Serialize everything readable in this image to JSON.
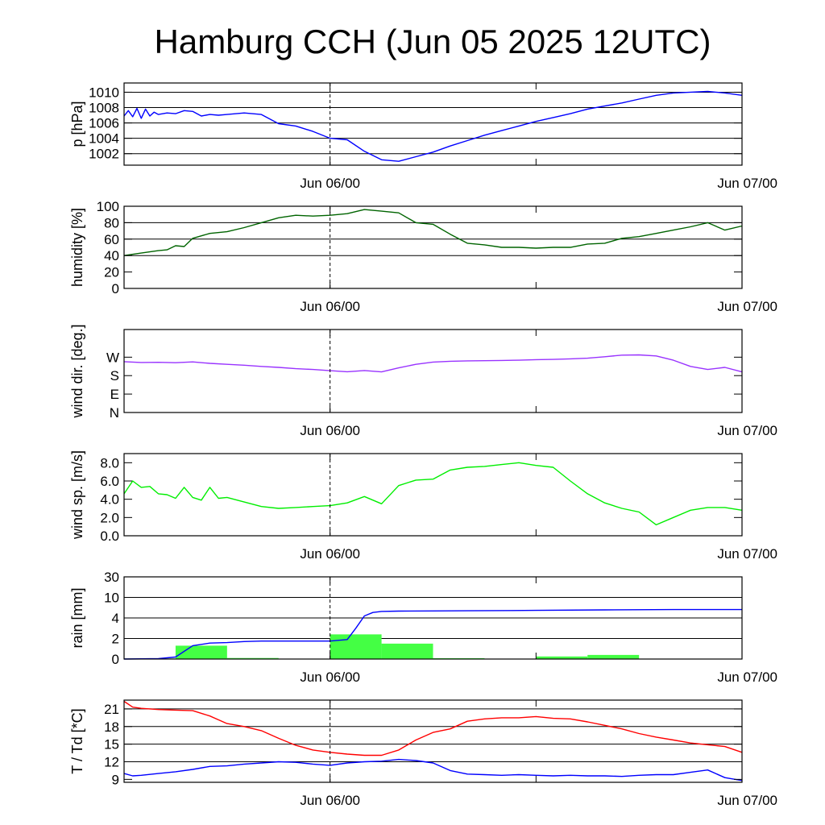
{
  "chart_data": {
    "type": "line",
    "title": "Hamburg CCH (Jun 05 2025 12UTC)",
    "x_ticks": [
      "Jun 06/00",
      "Jun 07/00"
    ],
    "x_range": [
      "Jun 05 12:00",
      "Jun 07 00:00"
    ],
    "marker_line": "Jun 06/00",
    "panels": [
      {
        "id": "pressure",
        "ylabel": "p [hPa]",
        "ylim": [
          1000.5,
          1011.2
        ],
        "yticks": [
          1002,
          1004,
          1006,
          1008,
          1010
        ],
        "yticklabels": [
          "1002",
          "1004",
          "1006",
          "1008",
          "1010"
        ],
        "gridlines": [
          1002,
          1004,
          1006,
          1008,
          1010
        ],
        "series": [
          {
            "color": "#0000ff",
            "x": [
              0,
              0.25,
              0.5,
              0.75,
              1,
              1.25,
              1.5,
              1.75,
              2,
              2.5,
              3,
              3.5,
              4,
              4.5,
              5,
              5.5,
              6,
              7,
              8,
              9,
              10,
              11,
              12,
              13,
              14,
              15,
              16,
              17,
              18,
              19,
              20,
              21,
              22,
              23,
              24,
              25,
              26,
              27,
              28,
              29,
              30,
              31,
              32,
              33,
              34,
              35,
              36
            ],
            "values": [
              1006.9,
              1007.6,
              1006.8,
              1007.9,
              1006.6,
              1007.8,
              1006.9,
              1007.4,
              1007.1,
              1007.3,
              1007.2,
              1007.6,
              1007.5,
              1006.9,
              1007.1,
              1007.0,
              1007.1,
              1007.3,
              1007.1,
              1005.9,
              1005.6,
              1004.9,
              1004.0,
              1003.8,
              1002.3,
              1001.2,
              1001.0,
              1001.6,
              1002.2,
              1003.0,
              1003.7,
              1004.4,
              1005.0,
              1005.6,
              1006.2,
              1006.7,
              1007.2,
              1007.8,
              1008.2,
              1008.6,
              1009.1,
              1009.6,
              1009.9,
              1010.0,
              1010.1,
              1009.9,
              1009.6
            ]
          }
        ]
      },
      {
        "id": "humidity",
        "ylabel": "humidity [%]",
        "ylim": [
          0,
          100
        ],
        "yticks": [
          0,
          20,
          40,
          60,
          80,
          100
        ],
        "yticklabels": [
          "0",
          "20",
          "40",
          "60",
          "80",
          "100"
        ],
        "gridlines": [
          40,
          60,
          80
        ],
        "series": [
          {
            "color": "#006400",
            "x": [
              0,
              1,
              2,
              2.5,
              3,
              3.5,
              4,
              5,
              6,
              7,
              8,
              9,
              10,
              11,
              12,
              13,
              14,
              15,
              16,
              17,
              18,
              19,
              20,
              21,
              22,
              23,
              24,
              25,
              26,
              27,
              28,
              29,
              30,
              31,
              32,
              33,
              34,
              35,
              36
            ],
            "values": [
              40,
              43,
              46,
              47,
              52,
              51,
              61,
              67,
              69,
              74,
              80,
              86,
              89,
              88,
              89,
              91,
              96,
              94,
              92,
              80,
              78,
              66,
              55,
              53,
              50,
              50,
              49,
              50,
              50,
              54,
              55,
              61,
              63,
              67,
              71,
              75,
              80,
              71,
              76
            ]
          }
        ]
      },
      {
        "id": "wind_direction",
        "ylabel": "wind dir. [deg.]",
        "ylim": [
          0,
          405
        ],
        "yticks": [
          0,
          90,
          180,
          270
        ],
        "yticklabels": [
          "N",
          "E",
          "S",
          "W"
        ],
        "gridlines": [],
        "series": [
          {
            "color": "#9933ff",
            "x": [
              0,
              1,
              2,
              3,
              4,
              5,
              6,
              7,
              8,
              9,
              10,
              11,
              12,
              13,
              14,
              15,
              16,
              17,
              18,
              19,
              20,
              21,
              22,
              23,
              24,
              25,
              26,
              27,
              28,
              29,
              30,
              31,
              32,
              33,
              34,
              35,
              36
            ],
            "values": [
              248,
              244,
              245,
              243,
              247,
              240,
              235,
              231,
              225,
              220,
              214,
              210,
              204,
              199,
              205,
              198,
              218,
              235,
              246,
              250,
              252,
              253,
              254,
              255,
              258,
              259,
              262,
              265,
              272,
              280,
              281,
              276,
              255,
              225,
              210,
              220,
              198
            ]
          }
        ]
      },
      {
        "id": "wind_speed",
        "ylabel": "wind sp. [m/s]",
        "ylim": [
          0,
          9
        ],
        "yticks": [
          0,
          2,
          4,
          6,
          8
        ],
        "yticklabels": [
          "0.0",
          "2.0",
          "4.0",
          "6.0",
          "8.0"
        ],
        "gridlines": [],
        "series": [
          {
            "color": "#00ee00",
            "x": [
              0,
              0.5,
              1,
              1.5,
              2,
              2.5,
              3,
              3.5,
              4,
              4.5,
              5,
              5.5,
              6,
              7,
              8,
              9,
              10,
              11,
              12,
              13,
              14,
              15,
              16,
              17,
              18,
              19,
              20,
              21,
              22,
              23,
              24,
              25,
              26,
              27,
              28,
              29,
              30,
              31,
              32,
              33,
              34,
              35,
              36
            ],
            "values": [
              4.6,
              6.0,
              5.3,
              5.4,
              4.6,
              4.5,
              4.1,
              5.3,
              4.2,
              3.9,
              5.3,
              4.1,
              4.2,
              3.7,
              3.2,
              3.0,
              3.1,
              3.2,
              3.3,
              3.6,
              4.3,
              3.5,
              5.5,
              6.1,
              6.2,
              7.2,
              7.5,
              7.6,
              7.8,
              8.0,
              7.7,
              7.5,
              6.0,
              4.6,
              3.6,
              3.0,
              2.6,
              1.2,
              2.0,
              2.8,
              3.1,
              3.1,
              2.8
            ]
          }
        ]
      },
      {
        "id": "rain",
        "ylabel": "rain [mm]",
        "ylim": [
          0,
          30
        ],
        "yscale": "custom",
        "yticks": [
          0,
          2,
          4,
          10,
          30
        ],
        "yticklabels": [
          "0",
          "2",
          "4",
          "10",
          "30"
        ],
        "gridlines": [
          2,
          4,
          10,
          30
        ],
        "bars": {
          "color": "#44ff44",
          "bins": [
            [
              0,
              3
            ],
            [
              3,
              6
            ],
            [
              6,
              9
            ],
            [
              9,
              12
            ],
            [
              12,
              15
            ],
            [
              15,
              18
            ],
            [
              18,
              21
            ],
            [
              21,
              24
            ],
            [
              24,
              27
            ],
            [
              27,
              30
            ],
            [
              30,
              33
            ],
            [
              33,
              36
            ]
          ],
          "values": [
            0.05,
            1.3,
            0.1,
            0,
            2.4,
            1.5,
            0.08,
            0,
            0.25,
            0.4,
            0,
            0
          ]
        },
        "series": [
          {
            "color": "#0000ff",
            "x": [
              0,
              2,
              3,
              4,
              5,
              6,
              7,
              8,
              9,
              10,
              11,
              12,
              13,
              13.5,
              14,
              14.5,
              15,
              16,
              18,
              20,
              24,
              28,
              32,
              36
            ],
            "values": [
              0,
              0.04,
              0.2,
              1.3,
              1.55,
              1.6,
              1.7,
              1.75,
              1.75,
              1.75,
              1.75,
              1.75,
              1.9,
              3.0,
              4.6,
              5.6,
              5.9,
              6.0,
              6.05,
              6.1,
              6.2,
              6.35,
              6.45,
              6.45
            ]
          }
        ]
      },
      {
        "id": "temperature",
        "ylabel": "T / Td [*C]",
        "ylim": [
          8.5,
          22.5
        ],
        "yticks": [
          9,
          12,
          15,
          18,
          21
        ],
        "yticklabels": [
          "9",
          "12",
          "15",
          "18",
          "21"
        ],
        "gridlines": [
          12,
          15,
          18,
          21
        ],
        "series": [
          {
            "name": "T",
            "color": "#ff0000",
            "x": [
              0,
              0.5,
              1,
              2,
              3,
              4,
              5,
              6,
              7,
              8,
              9,
              10,
              11,
              12,
              13,
              14,
              15,
              16,
              17,
              18,
              19,
              20,
              21,
              22,
              23,
              24,
              25,
              26,
              27,
              28,
              29,
              30,
              31,
              32,
              33,
              34,
              35,
              36
            ],
            "values": [
              22.3,
              21.3,
              21.1,
              20.9,
              20.8,
              20.7,
              19.8,
              18.5,
              18.0,
              17.3,
              16.0,
              14.8,
              14.0,
              13.6,
              13.3,
              13.1,
              13.1,
              14.0,
              15.7,
              17.0,
              17.6,
              18.9,
              19.3,
              19.5,
              19.5,
              19.7,
              19.4,
              19.3,
              18.8,
              18.2,
              17.6,
              16.8,
              16.2,
              15.7,
              15.2,
              14.9,
              14.6,
              13.6
            ]
          }
        ]
      }
    ],
    "dewpoint_series": {
      "name": "Td",
      "color": "#0000ff",
      "x": [
        0,
        0.5,
        1,
        2,
        3,
        4,
        5,
        6,
        7,
        8,
        9,
        10,
        11,
        12,
        13,
        14,
        15,
        16,
        17,
        18,
        19,
        20,
        21,
        22,
        23,
        24,
        25,
        26,
        27,
        28,
        29,
        30,
        31,
        32,
        33,
        34,
        35,
        36
      ],
      "values": [
        10.0,
        9.6,
        9.7,
        10.0,
        10.3,
        10.7,
        11.2,
        11.3,
        11.6,
        11.8,
        12.0,
        11.9,
        11.6,
        11.4,
        11.8,
        12.0,
        12.1,
        12.4,
        12.2,
        11.8,
        10.5,
        9.9,
        9.8,
        9.7,
        9.8,
        9.7,
        9.6,
        9.7,
        9.6,
        9.6,
        9.5,
        9.7,
        9.8,
        9.8,
        10.2,
        10.6,
        9.3,
        8.8
      ]
    }
  }
}
